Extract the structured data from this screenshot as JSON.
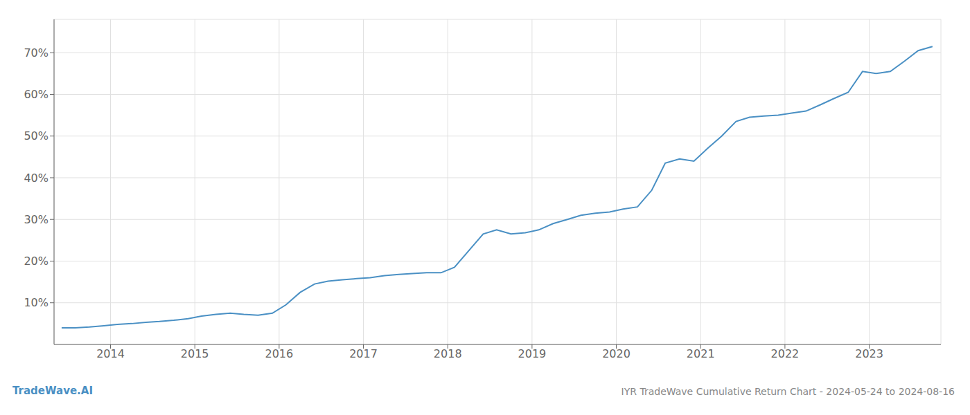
{
  "chart_data": {
    "type": "line",
    "title": "IYR TradeWave Cumulative Return Chart - 2024-05-24 to 2024-08-16",
    "annotations": [
      "TradeWave.AI"
    ],
    "x": [
      2013.42,
      2013.58,
      2013.75,
      2013.92,
      2014.08,
      2014.25,
      2014.42,
      2014.58,
      2014.75,
      2014.92,
      2015.08,
      2015.25,
      2015.42,
      2015.58,
      2015.75,
      2015.92,
      2016.08,
      2016.25,
      2016.42,
      2016.58,
      2016.75,
      2016.92,
      2017.08,
      2017.25,
      2017.42,
      2017.58,
      2017.75,
      2017.92,
      2018.08,
      2018.25,
      2018.42,
      2018.58,
      2018.75,
      2018.92,
      2019.08,
      2019.25,
      2019.42,
      2019.58,
      2019.75,
      2019.92,
      2020.08,
      2020.25,
      2020.42,
      2020.58,
      2020.75,
      2020.92,
      2021.08,
      2021.25,
      2021.42,
      2021.58,
      2021.75,
      2021.92,
      2022.08,
      2022.25,
      2022.42,
      2022.58,
      2022.75,
      2022.92,
      2023.08,
      2023.25,
      2023.42,
      2023.58,
      2023.75
    ],
    "values": [
      4.0,
      4.0,
      4.2,
      4.5,
      4.8,
      5.0,
      5.3,
      5.5,
      5.8,
      6.2,
      6.8,
      7.2,
      7.5,
      7.2,
      7.0,
      7.5,
      9.5,
      12.5,
      14.5,
      15.2,
      15.5,
      15.8,
      16.0,
      16.5,
      16.8,
      17.0,
      17.2,
      17.2,
      18.5,
      22.5,
      26.5,
      27.5,
      26.5,
      26.8,
      27.5,
      29.0,
      30.0,
      31.0,
      31.5,
      31.8,
      32.5,
      33.0,
      37.0,
      43.5,
      44.5,
      44.0,
      47.0,
      50.0,
      53.5,
      54.5,
      54.8,
      55.0,
      55.5,
      56.0,
      57.5,
      59.0,
      60.5,
      65.5,
      65.0,
      65.5,
      68.0,
      70.5,
      71.5
    ],
    "color": "#4a90c4",
    "xlim": [
      2013.33,
      2023.85
    ],
    "ylim": [
      0,
      78
    ],
    "xticks": [
      2014,
      2015,
      2016,
      2017,
      2018,
      2019,
      2020,
      2021,
      2022,
      2023
    ],
    "yticks": [
      {
        "value": 10,
        "label": "10%"
      },
      {
        "value": 20,
        "label": "20%"
      },
      {
        "value": 30,
        "label": "30%"
      },
      {
        "value": 40,
        "label": "40%"
      },
      {
        "value": 50,
        "label": "50%"
      },
      {
        "value": 60,
        "label": "60%"
      },
      {
        "value": 70,
        "label": "70%"
      }
    ],
    "grid": true
  }
}
